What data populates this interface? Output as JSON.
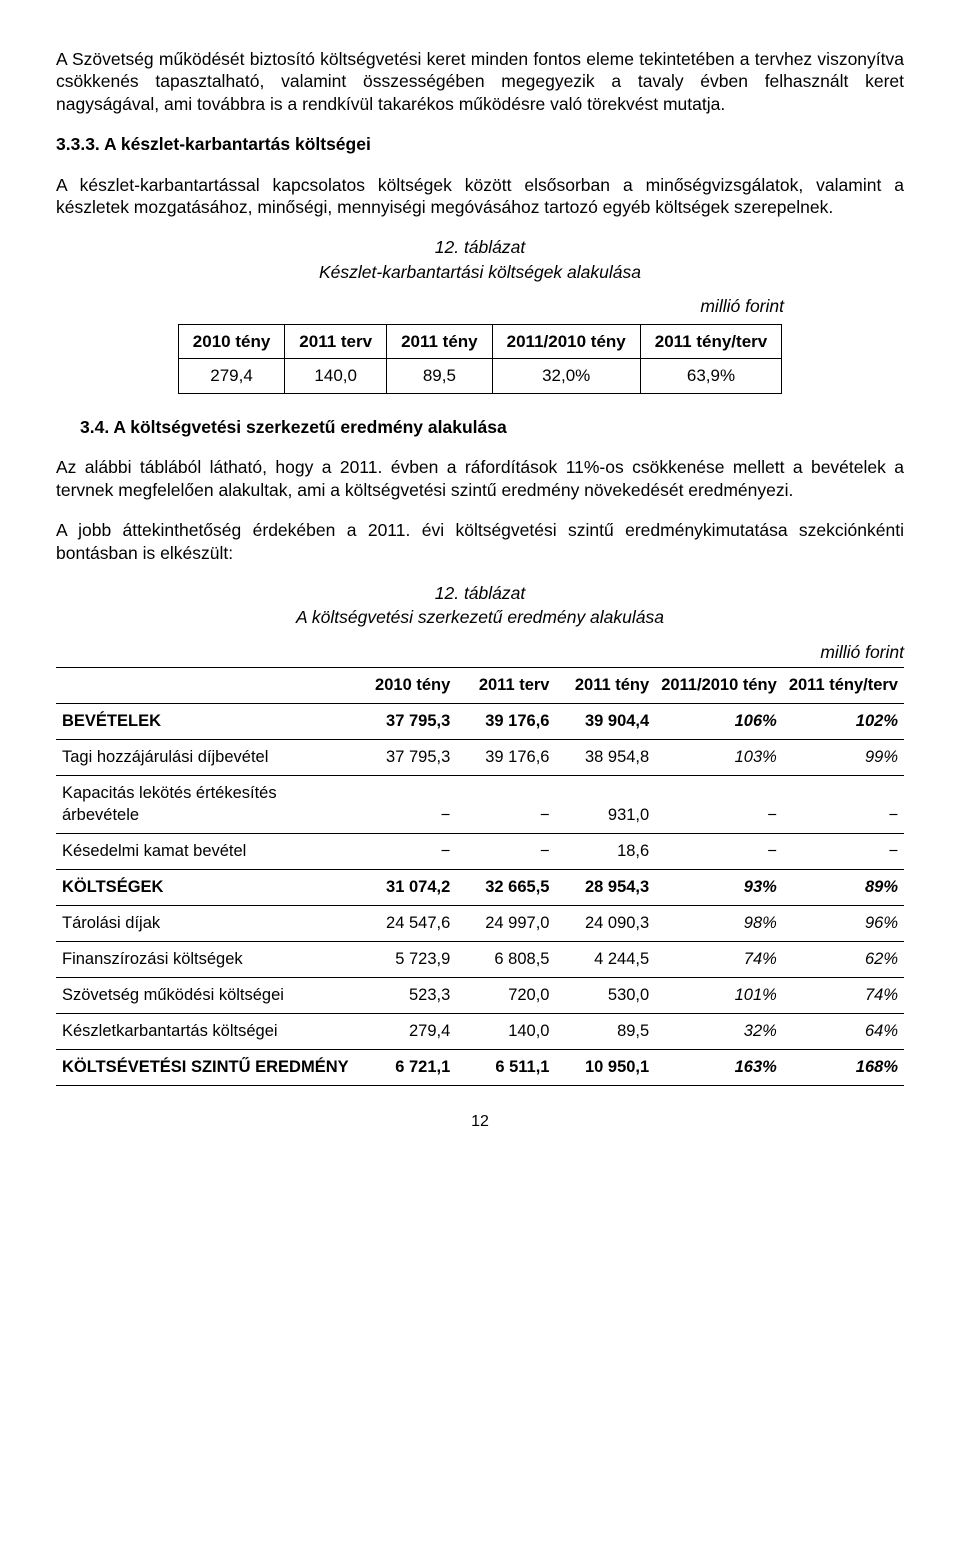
{
  "intro_para": "A Szövetség működését biztosító költségvetési keret minden fontos eleme tekintetében a tervhez viszonyítva csökkenés tapasztalható, valamint összességében megegyezik a tavaly évben felhasznált keret nagyságával, ami továbbra is a rendkívül takarékos működésre való törekvést mutatja.",
  "section_333": "3.3.3. A készlet-karbantartás költségei",
  "para_333": "A készlet-karbantartással kapcsolatos költségek között elsősorban a minőségvizsgálatok, valamint a készletek mozgatásához, minőségi, mennyiségi megóvásához tartozó egyéb költségek szerepelnek.",
  "table12a": {
    "title_num": "12. táblázat",
    "title_text": "Készlet-karbantartási költségek alakulása",
    "unit": "millió forint",
    "headers": [
      "2010 tény",
      "2011 terv",
      "2011 tény",
      "2011/2010 tény",
      "2011 tény/terv"
    ],
    "row": [
      "279,4",
      "140,0",
      "89,5",
      "32,0%",
      "63,9%"
    ]
  },
  "section_34": "3.4.  A költségvetési szerkezetű eredmény alakulása",
  "para_34a": "Az alábbi táblából látható, hogy a 2011. évben a ráfordítások 11%-os csökkenése mellett a bevételek a tervnek megfelelően alakultak, ami a költségvetési szintű eredmény növekedését eredményezi.",
  "para_34b": "A jobb áttekinthetőség érdekében a 2011. évi költségvetési szintű eredménykimutatása szekciónkénti bontásban is elkészült:",
  "table12b": {
    "title_num": "12. táblázat",
    "title_text": "A költségvetési szerkezetű eredmény alakulása",
    "unit": "millió forint",
    "headers": [
      "",
      "2010 tény",
      "2011 terv",
      "2011 tény",
      "2011/2010 tény",
      "2011 tény/terv"
    ],
    "rows": [
      {
        "bold": true,
        "cells": [
          "BEVÉTELEK",
          "37 795,3",
          "39 176,6",
          "39 904,4",
          "106%",
          "102%"
        ]
      },
      {
        "bold": false,
        "cells": [
          "Tagi hozzájárulási díjbevétel",
          "37 795,3",
          "39 176,6",
          "38 954,8",
          "103%",
          "99%"
        ]
      },
      {
        "bold": false,
        "cells": [
          "Kapacitás lekötés értékesítés árbevétele",
          "−",
          "−",
          "931,0",
          "−",
          "−"
        ]
      },
      {
        "bold": false,
        "cells": [
          "Késedelmi kamat bevétel",
          "−",
          "−",
          "18,6",
          "−",
          "−"
        ]
      },
      {
        "bold": true,
        "cells": [
          "KÖLTSÉGEK",
          "31 074,2",
          "32 665,5",
          "28 954,3",
          "93%",
          "89%"
        ]
      },
      {
        "bold": false,
        "cells": [
          "Tárolási díjak",
          "24 547,6",
          "24 997,0",
          "24 090,3",
          "98%",
          "96%"
        ]
      },
      {
        "bold": false,
        "cells": [
          "Finanszírozási költségek",
          "5 723,9",
          "6 808,5",
          "4 244,5",
          "74%",
          "62%"
        ]
      },
      {
        "bold": false,
        "cells": [
          "Szövetség működési költségei",
          "523,3",
          "720,0",
          "530,0",
          "101%",
          "74%"
        ]
      },
      {
        "bold": false,
        "cells": [
          "Készletkarbantartás költségei",
          "279,4",
          "140,0",
          "89,5",
          "32%",
          "64%"
        ]
      },
      {
        "bold": true,
        "cells": [
          "KÖLTSÉVETÉSI SZINTŰ EREDMÉNY",
          "6 721,1",
          "6 511,1",
          "10 950,1",
          "163%",
          "168%"
        ]
      }
    ]
  },
  "page_number": "12"
}
